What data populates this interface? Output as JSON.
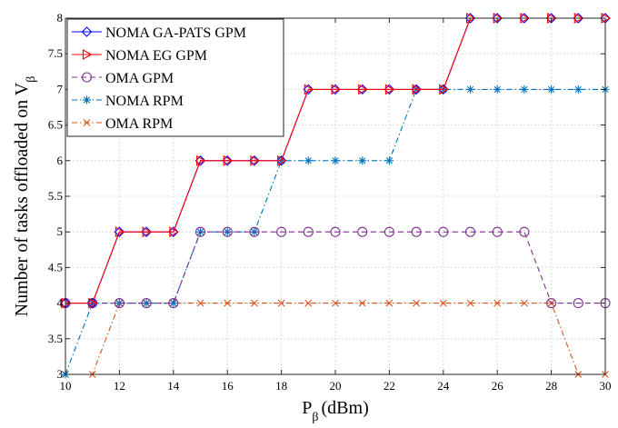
{
  "chart_data": {
    "type": "line",
    "xlabel": "P",
    "xlabel_sub": "β",
    "xlabel_unit": "(dBm)",
    "ylabel": "Number of tasks offloaded on  V",
    "ylabel_sub": "β",
    "xlim": [
      10,
      30
    ],
    "ylim": [
      3,
      8
    ],
    "xticks": [
      10,
      12,
      14,
      16,
      18,
      20,
      22,
      24,
      26,
      28,
      30
    ],
    "yticks": [
      3,
      3.5,
      4,
      4.5,
      5,
      5.5,
      6,
      6.5,
      7,
      7.5,
      8
    ],
    "grid": true,
    "legend_position": "top-left",
    "x": [
      10,
      11,
      12,
      13,
      14,
      15,
      16,
      17,
      18,
      19,
      20,
      21,
      22,
      23,
      24,
      25,
      26,
      27,
      28,
      29,
      30
    ],
    "series": [
      {
        "name": "NOMA GA-PATS GPM",
        "color": "#0000ff",
        "line_style": "solid",
        "marker": "diamond",
        "values": [
          4,
          4,
          5,
          5,
          5,
          6,
          6,
          6,
          6,
          7,
          7,
          7,
          7,
          7,
          7,
          8,
          8,
          8,
          8,
          8,
          8
        ]
      },
      {
        "name": "NOMA EG GPM",
        "color": "#ff0000",
        "line_style": "solid",
        "marker": "triangle-right",
        "values": [
          4,
          4,
          5,
          5,
          5,
          6,
          6,
          6,
          6,
          7,
          7,
          7,
          7,
          7,
          7,
          8,
          8,
          8,
          8,
          8,
          8
        ]
      },
      {
        "name": "OMA GPM",
        "color": "#7e2f8e",
        "line_style": "dashed",
        "marker": "circle",
        "values": [
          4,
          4,
          4,
          4,
          4,
          5,
          5,
          5,
          5,
          5,
          5,
          5,
          5,
          5,
          5,
          5,
          5,
          5,
          4,
          4,
          4
        ]
      },
      {
        "name": "NOMA RPM",
        "color": "#0072bd",
        "line_style": "dashdot",
        "marker": "asterisk",
        "values": [
          3,
          4,
          4,
          4,
          4,
          5,
          5,
          5,
          6,
          6,
          6,
          6,
          6,
          7,
          7,
          7,
          7,
          7,
          7,
          7,
          7
        ]
      },
      {
        "name": "OMA RPM",
        "color": "#d95319",
        "line_style": "dashdot",
        "marker": "x",
        "values": [
          3,
          3,
          4,
          4,
          4,
          4,
          4,
          4,
          4,
          4,
          4,
          4,
          4,
          4,
          4,
          4,
          4,
          4,
          4,
          3,
          3
        ]
      }
    ]
  }
}
